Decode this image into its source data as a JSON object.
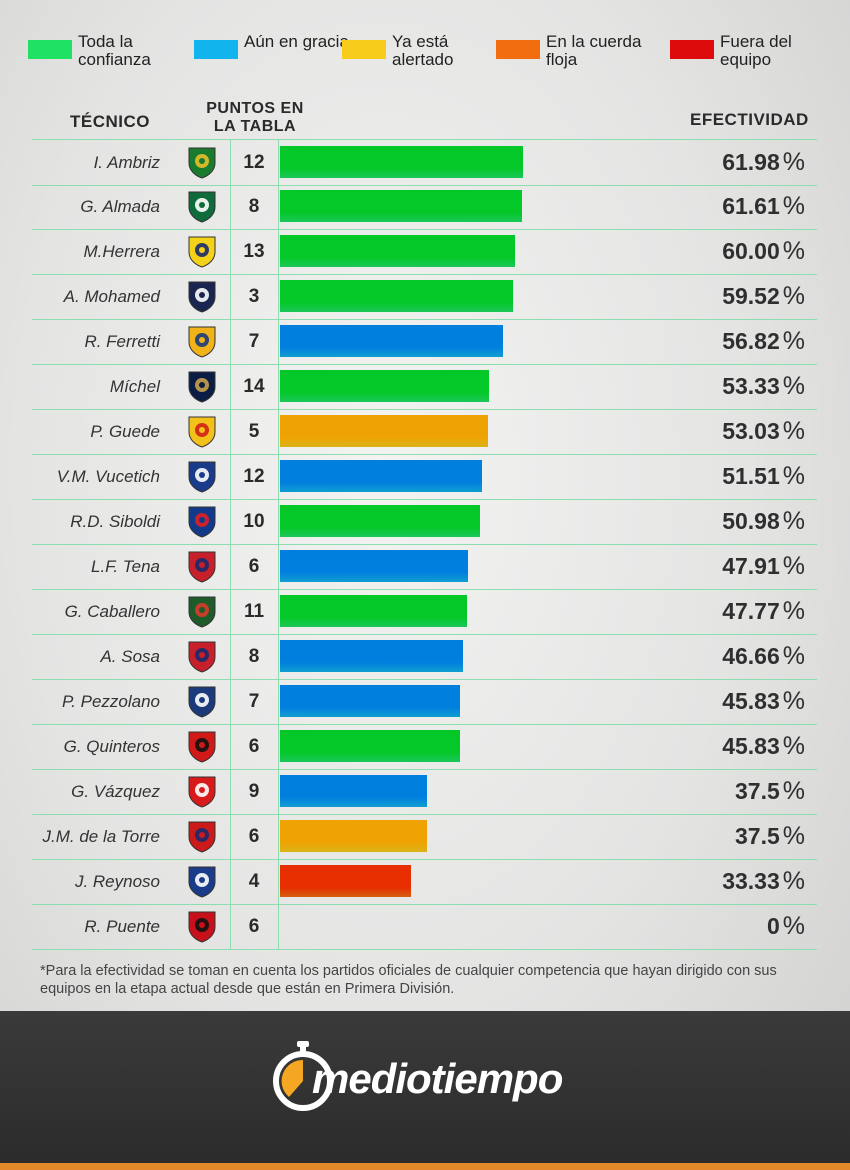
{
  "legend": [
    {
      "label": "Toda la confianza",
      "color": "#1fe265"
    },
    {
      "label": "Aún en gracia",
      "color": "#12b4ee"
    },
    {
      "label": "Ya está alertado",
      "color": "#f7cc1a"
    },
    {
      "label": "En la cuerda floja",
      "color": "#f26c10"
    },
    {
      "label": "Fuera del equipo",
      "color": "#dd0b0b"
    }
  ],
  "headers": {
    "tecnico": "TÉCNICO",
    "puntos": "PUNTOS EN LA TABLA",
    "efectividad": "EFECTIVIDAD"
  },
  "chart_data": {
    "type": "bar",
    "orientation": "horizontal",
    "value_unit": "%",
    "xlim": [
      0,
      100
    ],
    "rows": [
      {
        "coach": "I. Ambriz",
        "team_icon": "leon-crest-icon",
        "points": "12",
        "value": 61.98,
        "label": "61.98",
        "status": 0
      },
      {
        "coach": "G. Almada",
        "team_icon": "santos-crest-icon",
        "points": "8",
        "value": 61.61,
        "label": "61.61",
        "status": 0
      },
      {
        "coach": "M.Herrera",
        "team_icon": "america-crest-icon",
        "points": "13",
        "value": 60.0,
        "label": "60.00",
        "status": 0
      },
      {
        "coach": "A. Mohamed",
        "team_icon": "monterrey-crest-icon",
        "points": "3",
        "value": 59.52,
        "label": "59.52",
        "status": 0
      },
      {
        "coach": "R. Ferretti",
        "team_icon": "tigres-crest-icon",
        "points": "7",
        "value": 56.82,
        "label": "56.82",
        "status": 1
      },
      {
        "coach": "Míchel",
        "team_icon": "pumas-crest-icon",
        "points": "14",
        "value": 53.33,
        "label": "53.33",
        "status": 0
      },
      {
        "coach": "P. Guede",
        "team_icon": "morelia-crest-icon",
        "points": "5",
        "value": 53.03,
        "label": "53.03",
        "status": 2
      },
      {
        "coach": "V.M. Vucetich",
        "team_icon": "queretaro-crest-icon",
        "points": "12",
        "value": 51.51,
        "label": "51.51",
        "status": 1
      },
      {
        "coach": "R.D. Siboldi",
        "team_icon": "cruz-azul-crest-icon",
        "points": "10",
        "value": 50.98,
        "label": "50.98",
        "status": 0
      },
      {
        "coach": "L.F. Tena",
        "team_icon": "chivas-crest-icon",
        "points": "6",
        "value": 47.91,
        "label": "47.91",
        "status": 1
      },
      {
        "coach": "G. Caballero",
        "team_icon": "juarez-crest-icon",
        "points": "11",
        "value": 47.77,
        "label": "47.77",
        "status": 0
      },
      {
        "coach": "A. Sosa",
        "team_icon": "san-luis-crest-icon",
        "points": "8",
        "value": 46.66,
        "label": "46.66",
        "status": 1
      },
      {
        "coach": "P. Pezzolano",
        "team_icon": "pachuca-crest-icon",
        "points": "7",
        "value": 45.83,
        "label": "45.83",
        "status": 1
      },
      {
        "coach": "G. Quinteros",
        "team_icon": "tijuana-crest-icon",
        "points": "6",
        "value": 45.83,
        "label": "45.83",
        "status": 0
      },
      {
        "coach": "G. Vázquez",
        "team_icon": "necaxa-crest-icon",
        "points": "9",
        "value": 37.5,
        "label": "37.5",
        "status": 1
      },
      {
        "coach": "J.M. de la Torre",
        "team_icon": "toluca-crest-icon",
        "points": "6",
        "value": 37.5,
        "label": "37.5",
        "status": 2
      },
      {
        "coach": "J. Reynoso",
        "team_icon": "puebla-crest-icon",
        "points": "4",
        "value": 33.33,
        "label": "33.33",
        "status": 3
      },
      {
        "coach": "R. Puente",
        "team_icon": "atlas-crest-icon",
        "points": "6",
        "value": 0,
        "label": "0",
        "status": 0
      }
    ]
  },
  "footnote": "*Para la efectividad se toman en cuenta los partidos oficiales de cualquier competencia que hayan dirigido con sus equipos en la etapa actual desde que están en Primera División.",
  "brand": {
    "name": "mediotiempo",
    "logo_icon": "stopwatch-icon",
    "accent": "#f5a623"
  },
  "crest_colors": {
    "leon-crest-icon": [
      "#1a7a2e",
      "#e8c02a"
    ],
    "santos-crest-icon": [
      "#0f6b3a",
      "#ffffff"
    ],
    "america-crest-icon": [
      "#f5d21a",
      "#1a2a6b"
    ],
    "monterrey-crest-icon": [
      "#1a2550",
      "#ffffff"
    ],
    "tigres-crest-icon": [
      "#f2b21a",
      "#1b3a7a"
    ],
    "pumas-crest-icon": [
      "#0c1d45",
      "#c7a24a"
    ],
    "morelia-crest-icon": [
      "#f2c21a",
      "#d0201a"
    ],
    "queretaro-crest-icon": [
      "#1a3a8a",
      "#ffffff"
    ],
    "cruz-azul-crest-icon": [
      "#123a8a",
      "#e02020"
    ],
    "chivas-crest-icon": [
      "#c8202a",
      "#1a2a6b"
    ],
    "juarez-crest-icon": [
      "#1f5a2a",
      "#d83a2a"
    ],
    "san-luis-crest-icon": [
      "#c8202a",
      "#1a2a6b"
    ],
    "pachuca-crest-icon": [
      "#1a3a7a",
      "#ffffff"
    ],
    "tijuana-crest-icon": [
      "#d01a1a",
      "#111111"
    ],
    "necaxa-crest-icon": [
      "#d81a1a",
      "#ffffff"
    ],
    "toluca-crest-icon": [
      "#cc1a1a",
      "#1a2a6b"
    ],
    "puebla-crest-icon": [
      "#1a3a8a",
      "#ffffff"
    ],
    "atlas-crest-icon": [
      "#c8101a",
      "#111111"
    ]
  }
}
